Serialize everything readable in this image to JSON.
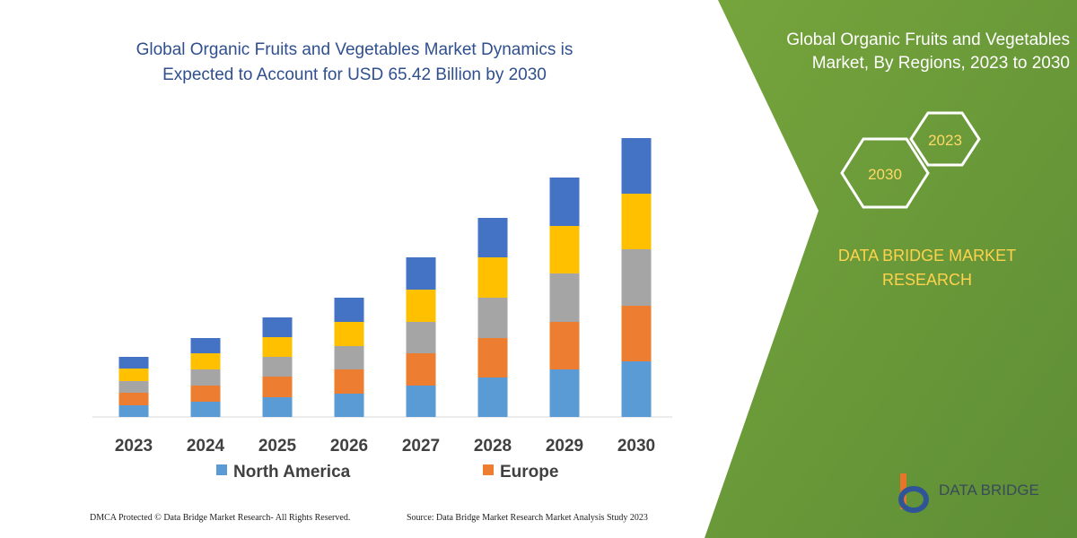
{
  "chart_data": {
    "type": "bar",
    "stacked": true,
    "title": "Global Organic Fruits and Vegetables Market Dynamics is Expected to Account for USD 65.42 Billion by 2030",
    "categories": [
      "2023",
      "2024",
      "2025",
      "2026",
      "2027",
      "2028",
      "2029",
      "2030"
    ],
    "series": [
      {
        "name": "North America",
        "color": "#5b9bd5",
        "values": [
          13,
          17,
          22,
          26,
          35,
          44,
          53,
          62
        ]
      },
      {
        "name": "Europe",
        "color": "#ed7d31",
        "values": [
          14,
          18,
          23,
          27,
          36,
          44,
          53,
          62
        ]
      },
      {
        "color": "#a5a5a5",
        "values": [
          13,
          18,
          22,
          26,
          35,
          45,
          54,
          63
        ]
      },
      {
        "color": "#ffc000",
        "values": [
          14,
          18,
          22,
          27,
          36,
          45,
          53,
          62
        ]
      },
      {
        "color": "#4472c4",
        "values": [
          13,
          17,
          22,
          27,
          36,
          44,
          54,
          62
        ]
      }
    ],
    "ylim": [
      0,
      320
    ]
  },
  "panel": {
    "title": "Global Organic Fruits and Vegetables Market, By Regions, 2023 to 2030",
    "hexagons": [
      "2023",
      "2030"
    ],
    "brand": "DATA BRIDGE MARKET RESEARCH",
    "logo": "DATA BRIDGE"
  },
  "footer": {
    "rights": "DMCA Protected © Data Bridge Market Research- All Rights Reserved.",
    "source": "Source: Data Bridge Market Research Market Analysis Study 2023"
  }
}
